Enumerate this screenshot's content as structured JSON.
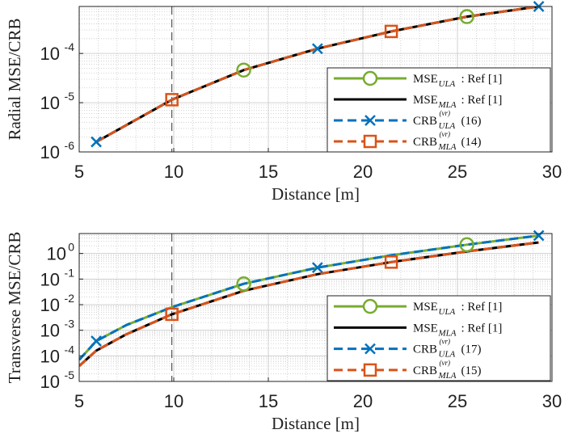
{
  "chart_data": [
    {
      "type": "line",
      "ylabel": "Radial MSE/CRB",
      "xlabel": "Distance [m]",
      "xlim": [
        5,
        30
      ],
      "ylim": [
        1e-06,
        0.0009
      ],
      "yscale": "log",
      "grid": true,
      "legend_position": "bottom-right",
      "x_ticks": [
        "5",
        "10",
        "15",
        "20",
        "25",
        "30"
      ],
      "y_ticks": [
        {
          "exp": "-6",
          "value": 1e-06
        },
        {
          "exp": "-5",
          "value": 1e-05
        },
        {
          "exp": "-4",
          "value": 0.0001
        }
      ],
      "vline_x": 9.9,
      "series": [
        {
          "name": "MSE_ULA: Ref [1]",
          "color": "#77AC30",
          "marker": "circle",
          "dash": "solid",
          "x": [
            5.9,
            9.9,
            13.7,
            17.6,
            21.5,
            25.5,
            29.3
          ],
          "y": [
            1.6e-06,
            1.15e-05,
            4.6e-05,
            0.000125,
            0.00028,
            0.00056,
            0.0009
          ]
        },
        {
          "name": "MSE_MLA: Ref [1]",
          "color": "#000000",
          "marker": "none",
          "dash": "solid",
          "x": [
            5.9,
            9.9,
            13.7,
            17.6,
            21.5,
            25.5,
            29.3
          ],
          "y": [
            1.6e-06,
            1.15e-05,
            4.6e-05,
            0.000125,
            0.00028,
            0.00056,
            0.0009
          ]
        },
        {
          "name": "CRB_ULA (16)",
          "color": "#0072BD",
          "marker": "x",
          "dash": "dashed",
          "x": [
            5.9,
            9.9,
            13.7,
            17.6,
            21.5,
            25.5,
            29.3
          ],
          "y": [
            1.6e-06,
            1.15e-05,
            4.6e-05,
            0.000125,
            0.00028,
            0.00056,
            0.0009
          ]
        },
        {
          "name": "CRB_MLA (14)",
          "color": "#D95319",
          "marker": "square",
          "dash": "dashed",
          "x": [
            5.9,
            9.9,
            13.7,
            17.6,
            21.5,
            25.5,
            29.3
          ],
          "y": [
            1.6e-06,
            1.15e-05,
            4.6e-05,
            0.000125,
            0.00028,
            0.00056,
            0.0009
          ]
        }
      ],
      "legend": [
        {
          "main": "MSE",
          "sub": "ULA",
          "sup": "",
          "rest": ": Ref [1]"
        },
        {
          "main": "MSE",
          "sub": "MLA",
          "sup": "",
          "rest": ": Ref [1]"
        },
        {
          "main": "CRB",
          "sub": "ULA",
          "sup": "(vr)",
          "rest": " (16)"
        },
        {
          "main": "CRB",
          "sub": "MLA",
          "sup": "(vr)",
          "rest": " (14)"
        }
      ]
    },
    {
      "type": "line",
      "ylabel": "Transverse MSE/CRB",
      "xlabel": "Distance [m]",
      "xlim": [
        5,
        30
      ],
      "ylim": [
        1e-05,
        6
      ],
      "yscale": "log",
      "grid": true,
      "legend_position": "bottom-right",
      "x_ticks": [
        "5",
        "10",
        "15",
        "20",
        "25",
        "30"
      ],
      "y_ticks": [
        {
          "exp": "-5",
          "value": 1e-05
        },
        {
          "exp": "-4",
          "value": 0.0001
        },
        {
          "exp": "-3",
          "value": 0.001
        },
        {
          "exp": "-2",
          "value": 0.01
        },
        {
          "exp": "-1",
          "value": 0.1
        },
        {
          "exp": "0",
          "value": 1
        }
      ],
      "vline_x": 9.9,
      "series": [
        {
          "name": "MSE_ULA: Ref [1]",
          "color": "#77AC30",
          "marker": "circle",
          "dash": "solid",
          "x": [
            5.0,
            5.9,
            7.5,
            9.9,
            13.7,
            17.6,
            21.5,
            25.5,
            29.3
          ],
          "y": [
            7e-05,
            0.00038,
            0.0016,
            0.008,
            0.065,
            0.28,
            0.85,
            2.2,
            5.0
          ]
        },
        {
          "name": "MSE_MLA: Ref [1]",
          "color": "#000000",
          "marker": "none",
          "dash": "solid",
          "x": [
            5.0,
            5.9,
            7.5,
            9.9,
            13.7,
            17.6,
            21.5,
            25.5,
            29.3
          ],
          "y": [
            4e-05,
            0.00016,
            0.0007,
            0.0042,
            0.035,
            0.155,
            0.46,
            1.2,
            2.7
          ]
        },
        {
          "name": "CRB_ULA (17)",
          "color": "#0072BD",
          "marker": "x",
          "dash": "dashed",
          "x": [
            5.0,
            5.9,
            7.5,
            9.9,
            13.7,
            17.6,
            21.5,
            25.5,
            29.3
          ],
          "y": [
            7e-05,
            0.00038,
            0.0016,
            0.008,
            0.065,
            0.28,
            0.85,
            2.2,
            5.0
          ]
        },
        {
          "name": "CRB_MLA (15)",
          "color": "#D95319",
          "marker": "square",
          "dash": "dashed",
          "x": [
            5.0,
            5.9,
            7.5,
            9.9,
            13.7,
            17.6,
            21.5,
            25.5,
            29.3
          ],
          "y": [
            4e-05,
            0.00016,
            0.0007,
            0.0042,
            0.035,
            0.155,
            0.46,
            1.2,
            2.7
          ]
        }
      ],
      "legend": [
        {
          "main": "MSE",
          "sub": "ULA",
          "sup": "",
          "rest": ": Ref [1]"
        },
        {
          "main": "MSE",
          "sub": "MLA",
          "sup": "",
          "rest": ": Ref [1]"
        },
        {
          "main": "CRB",
          "sub": "ULA",
          "sup": "(vr)",
          "rest": " (17)"
        },
        {
          "main": "CRB",
          "sub": "MLA",
          "sup": "(vr)",
          "rest": " (15)"
        }
      ]
    }
  ]
}
